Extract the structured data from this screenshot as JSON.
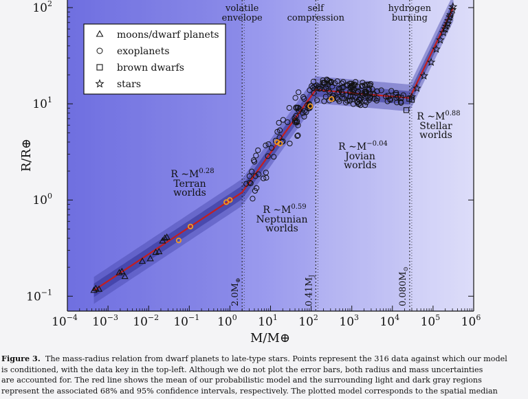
{
  "chart_data": {
    "type": "scatter",
    "xlabel": "M/M⊕",
    "ylabel": "R/R⊕",
    "xscale": "log",
    "yscale": "log",
    "xlim": [
      0.0001,
      1000000
    ],
    "ylim": [
      0.07,
      120
    ],
    "x_ticks": [
      {
        "value": 0.0001,
        "base": "10",
        "exp": "−4"
      },
      {
        "value": 0.001,
        "base": "10",
        "exp": "−3"
      },
      {
        "value": 0.01,
        "base": "10",
        "exp": "−2"
      },
      {
        "value": 0.1,
        "base": "10",
        "exp": "−1"
      },
      {
        "value": 1,
        "base": "10",
        "exp": "0"
      },
      {
        "value": 10,
        "base": "10",
        "exp": "1"
      },
      {
        "value": 100,
        "base": "10",
        "exp": "2"
      },
      {
        "value": 1000,
        "base": "10",
        "exp": "3"
      },
      {
        "value": 10000,
        "base": "10",
        "exp": "4"
      },
      {
        "value": 100000,
        "base": "10",
        "exp": "5"
      },
      {
        "value": 1000000,
        "base": "10",
        "exp": "6"
      }
    ],
    "y_ticks": [
      {
        "value": 0.1,
        "base": "10",
        "exp": "−1"
      },
      {
        "value": 1,
        "base": "10",
        "exp": "0"
      },
      {
        "value": 10,
        "base": "10",
        "exp": "1"
      },
      {
        "value": 100,
        "base": "10",
        "exp": "2"
      }
    ],
    "legend": {
      "position": "top-left",
      "entries": [
        {
          "marker": "triangle",
          "label": "moons/dwarf planets"
        },
        {
          "marker": "circle",
          "label": "exoplanets"
        },
        {
          "marker": "square",
          "label": "brown dwarfs"
        },
        {
          "marker": "star",
          "label": "stars"
        }
      ]
    },
    "regions": [
      {
        "name": "Terran worlds",
        "relation": "R ∼M",
        "exponent": "0.28",
        "x_from": 0.0001,
        "x_to": 2.0
      },
      {
        "name": "Neptunian worlds",
        "relation": "R ∼M",
        "exponent": "0.59",
        "x_from": 2.0,
        "x_to": 130
      },
      {
        "name": "Jovian worlds",
        "relation": "R ∼M",
        "exponent": "−0.04",
        "x_from": 130,
        "x_to": 26600
      },
      {
        "name": "Stellar worlds",
        "relation": "R ∼M",
        "exponent": "0.88",
        "x_from": 26600,
        "x_to": 1000000
      }
    ],
    "transitions": [
      {
        "label": "2.0M",
        "subscript": "⊕",
        "x": 2.0,
        "top_label": [
          "volatile",
          "envelope"
        ]
      },
      {
        "label": "0.41M",
        "subscript": "J",
        "x": 130,
        "top_label": [
          "self",
          "compression"
        ]
      },
      {
        "label": "0.080M",
        "subscript": "⊙",
        "x": 26600,
        "top_label": [
          "hydrogen",
          "burning"
        ]
      }
    ],
    "model_line": [
      [
        0.00045,
        0.115
      ],
      [
        2.0,
        1.2
      ],
      [
        130,
        14.0
      ],
      [
        26600,
        11.5
      ],
      [
        316000,
        100
      ]
    ],
    "band_68_halfwidth_dex": 0.07,
    "band_95_halfwidth_dex": 0.14,
    "solar_system": {
      "mercury": [
        0.055,
        0.38
      ],
      "mars": [
        0.107,
        0.53
      ],
      "venus": [
        0.815,
        0.95
      ],
      "earth": [
        1.0,
        1.0
      ],
      "uranus": [
        14.5,
        4.0
      ],
      "neptune": [
        17.1,
        3.86
      ],
      "saturn": [
        95.2,
        9.45
      ],
      "jupiter": [
        317.8,
        11.2
      ]
    },
    "series": [
      {
        "name": "moons/dwarf planets",
        "marker": "triangle",
        "points": [
          [
            0.00045,
            0.115
          ],
          [
            0.0005,
            0.12
          ],
          [
            0.0006,
            0.118
          ],
          [
            0.0019,
            0.175
          ],
          [
            0.0022,
            0.18
          ],
          [
            0.0026,
            0.16
          ],
          [
            0.007,
            0.23
          ],
          [
            0.011,
            0.245
          ],
          [
            0.015,
            0.285
          ],
          [
            0.018,
            0.29
          ],
          [
            0.022,
            0.375
          ],
          [
            0.025,
            0.4
          ],
          [
            0.028,
            0.41
          ]
        ]
      },
      {
        "name": "exoplanets",
        "marker": "circle",
        "points": []
      },
      {
        "name": "brown dwarfs",
        "marker": "square",
        "points": [
          [
            8000,
            12.1
          ],
          [
            12000,
            12.4
          ],
          [
            16000,
            11.6
          ],
          [
            22000,
            8.6
          ],
          [
            26000,
            11.3
          ],
          [
            30000,
            11.0
          ]
        ]
      },
      {
        "name": "stars",
        "marker": "star",
        "points": [
          [
            30000,
            11.8
          ],
          [
            40000,
            14.5
          ],
          [
            60000,
            19.5
          ],
          [
            90000,
            27
          ],
          [
            120000,
            37
          ],
          [
            150000,
            46
          ],
          [
            180000,
            55
          ],
          [
            210000,
            64
          ],
          [
            240000,
            73
          ],
          [
            270000,
            84
          ],
          [
            300000,
            95
          ],
          [
            310000,
            102
          ],
          [
            260000,
            80
          ],
          [
            230000,
            68
          ],
          [
            200000,
            60
          ]
        ]
      }
    ],
    "exoplanet_seed": 316
  },
  "caption": {
    "label": "Figure 3.",
    "lines": [
      "The mass-radius relation from dwarf planets to late-type stars. Points represent the 316 data against which our model",
      "is conditioned, with the data key in the top-left. Although we do not plot the error bars, both radius and mass uncertainties",
      "are accounted for. The red line shows the mean of our probabilistic model and the surrounding light and dark gray regions",
      "represent the associated 68% and 95% confidence intervals, respectively. The plotted model corresponds to the spatial median"
    ]
  }
}
